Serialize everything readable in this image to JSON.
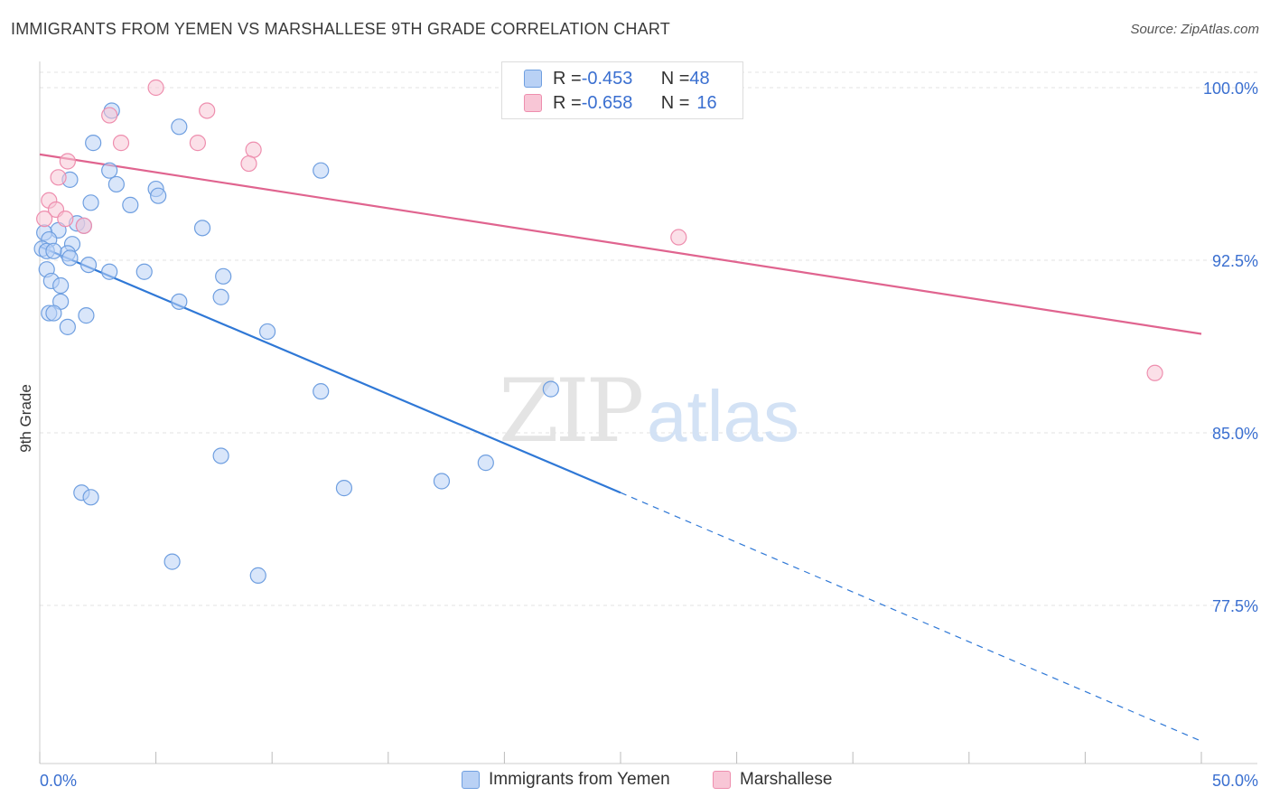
{
  "title": "IMMIGRANTS FROM YEMEN VS MARSHALLESE 9TH GRADE CORRELATION CHART",
  "source": "Source: ZipAtlas.com",
  "watermark": {
    "zip": "ZIP",
    "atlas": "atlas"
  },
  "colors": {
    "blue": "#6f9fe0",
    "blue_fill": "#b9d1f5",
    "blue_line": "#2f78d6",
    "pink": "#ee8eae",
    "pink_fill": "#f8c6d6",
    "pink_line": "#e0648f",
    "axis_label": "#3a6fd0"
  },
  "legend": {
    "rows": [
      {
        "r_label": "R = ",
        "r_value": "-0.453",
        "n_label": "N = ",
        "n_value": "48"
      },
      {
        "r_label": "R = ",
        "r_value": "-0.658",
        "n_label": "N = ",
        "n_value": "16"
      }
    ]
  },
  "chart_data": {
    "type": "scatter",
    "title": "IMMIGRANTS FROM YEMEN VS MARSHALLESE 9TH GRADE CORRELATION CHART",
    "xlabel": "",
    "ylabel": "9th Grade",
    "xlim": [
      0,
      50
    ],
    "ylim": [
      70.0,
      101.0
    ],
    "x_tick_labels": [
      "0.0%",
      "50.0%"
    ],
    "y_ticks": [
      77.5,
      85.0,
      92.5,
      100.0
    ],
    "y_tick_labels": [
      "77.5%",
      "85.0%",
      "92.5%",
      "100.0%"
    ],
    "grid": true,
    "legend_position": "top-center",
    "series": [
      {
        "name": "Immigrants from Yemen",
        "r": -0.453,
        "n": 48,
        "points": [
          [
            3.1,
            99.0
          ],
          [
            6.0,
            98.3
          ],
          [
            2.3,
            97.6
          ],
          [
            3.0,
            96.4
          ],
          [
            1.3,
            96.0
          ],
          [
            3.3,
            95.8
          ],
          [
            5.0,
            95.6
          ],
          [
            5.1,
            95.3
          ],
          [
            2.2,
            95.0
          ],
          [
            3.9,
            94.9
          ],
          [
            12.1,
            96.4
          ],
          [
            1.6,
            94.1
          ],
          [
            1.9,
            94.0
          ],
          [
            0.8,
            93.8
          ],
          [
            0.2,
            93.7
          ],
          [
            0.4,
            93.4
          ],
          [
            7.0,
            93.9
          ],
          [
            0.1,
            93.0
          ],
          [
            1.4,
            93.2
          ],
          [
            0.3,
            92.9
          ],
          [
            1.2,
            92.8
          ],
          [
            0.6,
            92.9
          ],
          [
            1.3,
            92.6
          ],
          [
            2.1,
            92.3
          ],
          [
            0.3,
            92.1
          ],
          [
            3.0,
            92.0
          ],
          [
            4.5,
            92.0
          ],
          [
            7.9,
            91.8
          ],
          [
            0.5,
            91.6
          ],
          [
            0.9,
            91.4
          ],
          [
            0.9,
            90.7
          ],
          [
            6.0,
            90.7
          ],
          [
            7.8,
            90.9
          ],
          [
            0.4,
            90.2
          ],
          [
            0.6,
            90.2
          ],
          [
            2.0,
            90.1
          ],
          [
            1.2,
            89.6
          ],
          [
            9.8,
            89.4
          ],
          [
            12.1,
            86.8
          ],
          [
            22.0,
            86.9
          ],
          [
            7.8,
            84.0
          ],
          [
            19.2,
            83.7
          ],
          [
            1.8,
            82.4
          ],
          [
            2.2,
            82.2
          ],
          [
            13.1,
            82.6
          ],
          [
            17.3,
            82.9
          ],
          [
            5.7,
            79.4
          ],
          [
            9.4,
            78.8
          ]
        ],
        "trend": {
          "x1": 0,
          "y1": 93.1,
          "x2": 25,
          "y2": 82.4,
          "dashed_to": 50,
          "dashed_y": 71.6
        }
      },
      {
        "name": "Marshallese",
        "r": -0.658,
        "n": 16,
        "points": [
          [
            5.0,
            100.0
          ],
          [
            7.2,
            99.0
          ],
          [
            3.0,
            98.8
          ],
          [
            3.5,
            97.6
          ],
          [
            6.8,
            97.6
          ],
          [
            9.2,
            97.3
          ],
          [
            9.0,
            96.7
          ],
          [
            1.2,
            96.8
          ],
          [
            0.8,
            96.1
          ],
          [
            0.4,
            95.1
          ],
          [
            0.7,
            94.7
          ],
          [
            1.1,
            94.3
          ],
          [
            0.2,
            94.3
          ],
          [
            1.9,
            94.0
          ],
          [
            27.5,
            93.5
          ],
          [
            48.0,
            87.6
          ]
        ],
        "trend": {
          "x1": 0,
          "y1": 97.1,
          "x2": 50,
          "y2": 89.3
        }
      }
    ]
  }
}
